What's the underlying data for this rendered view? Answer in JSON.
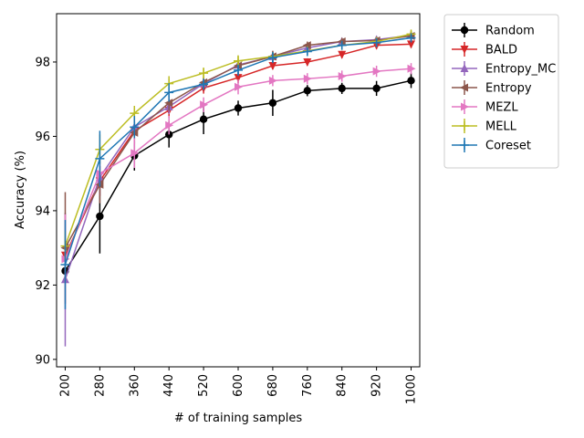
{
  "chart_data": {
    "type": "line",
    "title": "",
    "xlabel": "# of training samples",
    "ylabel": "Accuracy (%)",
    "categories": [
      "200",
      "280",
      "360",
      "440",
      "520",
      "600",
      "680",
      "760",
      "840",
      "920",
      "1000"
    ],
    "x": [
      200,
      280,
      360,
      440,
      520,
      600,
      680,
      760,
      840,
      920,
      1000
    ],
    "ylim": [
      89.8,
      99.3
    ],
    "yticks": [
      90,
      92,
      94,
      96,
      98
    ],
    "grid": false,
    "legend_position": "outside-top-right",
    "series": [
      {
        "name": "Random",
        "color": "#000000",
        "marker": "circle",
        "values": [
          92.38,
          93.85,
          95.48,
          96.05,
          96.46,
          96.76,
          96.9,
          97.23,
          97.29,
          97.29,
          97.5
        ],
        "errors": [
          0.3,
          1.0,
          0.4,
          0.35,
          0.4,
          0.2,
          0.35,
          0.15,
          0.15,
          0.2,
          0.2
        ]
      },
      {
        "name": "BALD",
        "color": "#d62728",
        "marker": "triangle-down",
        "values": [
          92.8,
          94.8,
          96.15,
          96.7,
          97.3,
          97.58,
          97.9,
          98.0,
          98.2,
          98.45,
          98.48
        ],
        "errors": [
          0.3,
          0.4,
          0.25,
          0.2,
          0.15,
          0.15,
          0.1,
          0.1,
          0.1,
          0.1,
          0.1
        ]
      },
      {
        "name": "Entropy_MC",
        "color": "#9467bd",
        "marker": "triangle-up",
        "values": [
          92.15,
          94.9,
          96.25,
          96.8,
          97.42,
          97.92,
          98.15,
          98.38,
          98.55,
          98.6,
          98.72
        ],
        "errors": [
          1.8,
          0.5,
          0.25,
          0.2,
          0.15,
          0.15,
          0.15,
          0.1,
          0.1,
          0.1,
          0.1
        ]
      },
      {
        "name": "Entropy",
        "color": "#8c564b",
        "marker": "triangle-left",
        "values": [
          93.0,
          94.7,
          96.1,
          96.9,
          97.45,
          97.9,
          98.15,
          98.45,
          98.55,
          98.58,
          98.7
        ],
        "errors": [
          1.5,
          0.5,
          0.3,
          0.2,
          0.15,
          0.15,
          0.15,
          0.1,
          0.1,
          0.1,
          0.1
        ]
      },
      {
        "name": "MEZL",
        "color": "#e377c2",
        "marker": "triangle-right",
        "values": [
          92.7,
          95.0,
          95.55,
          96.3,
          96.85,
          97.33,
          97.5,
          97.55,
          97.62,
          97.75,
          97.82
        ],
        "errors": [
          1.2,
          0.3,
          0.4,
          0.25,
          0.2,
          0.2,
          0.15,
          0.15,
          0.15,
          0.15,
          0.15
        ]
      },
      {
        "name": "MELL",
        "color": "#bcbd22",
        "marker": "plus",
        "values": [
          93.05,
          95.65,
          96.62,
          97.42,
          97.7,
          98.03,
          98.15,
          98.3,
          98.45,
          98.55,
          98.75
        ],
        "errors": [
          0.4,
          0.4,
          0.2,
          0.2,
          0.15,
          0.15,
          0.1,
          0.1,
          0.1,
          0.1,
          0.1
        ]
      },
      {
        "name": "Coreset",
        "color": "#1f77b4",
        "marker": "plus",
        "values": [
          92.55,
          95.4,
          96.25,
          97.18,
          97.4,
          97.78,
          98.12,
          98.28,
          98.45,
          98.52,
          98.65
        ],
        "errors": [
          1.2,
          0.75,
          0.3,
          0.25,
          0.15,
          0.15,
          0.15,
          0.1,
          0.1,
          0.1,
          0.1
        ]
      }
    ]
  }
}
